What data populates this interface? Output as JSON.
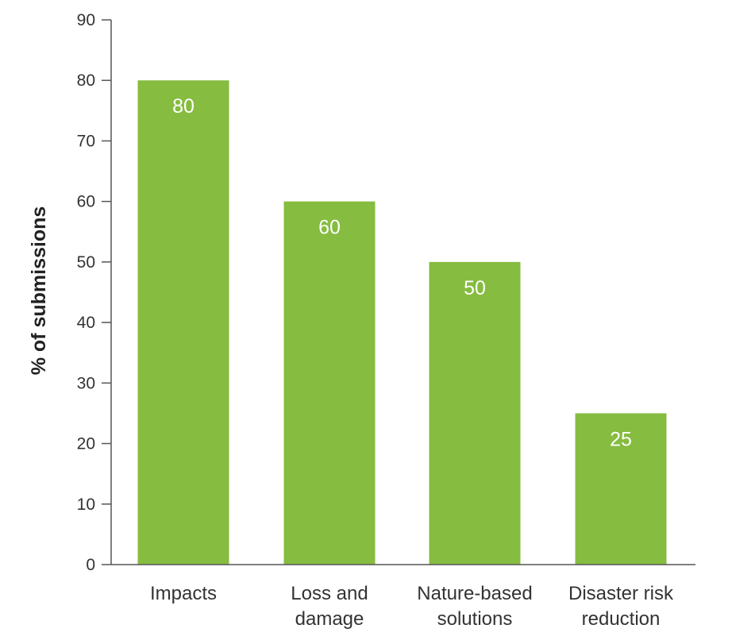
{
  "chart_data": {
    "type": "bar",
    "categories": [
      [
        "Impacts"
      ],
      [
        "Loss and",
        "damage"
      ],
      [
        "Nature-based",
        "solutions"
      ],
      [
        "Disaster risk",
        "reduction"
      ]
    ],
    "values": [
      80,
      60,
      50,
      25
    ],
    "data_labels": [
      "80",
      "60",
      "50",
      "25"
    ],
    "title": "",
    "xlabel": "",
    "ylabel": "% of submissions",
    "ylim": [
      0,
      90
    ],
    "yticks": [
      0,
      10,
      20,
      30,
      40,
      50,
      60,
      70,
      80,
      90
    ],
    "grid": false,
    "legend": "none",
    "bar_color": "#86bc40",
    "axis_color": "#555555"
  }
}
